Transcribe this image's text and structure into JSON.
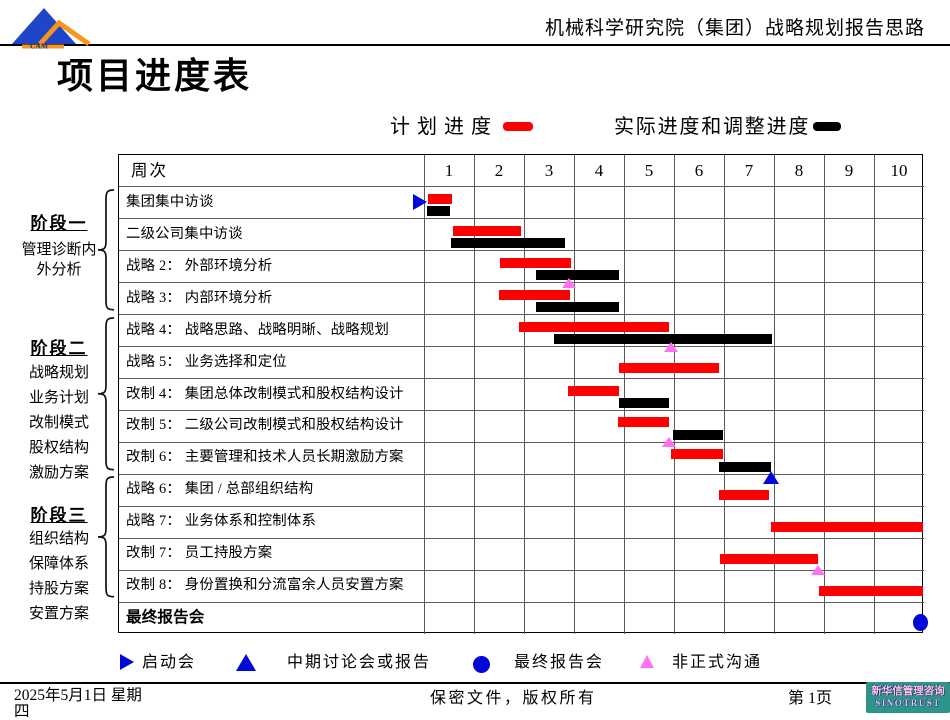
{
  "header": {
    "brand_mark": "CAM",
    "title": "机械科学研究院（集团）战略规划报告思路"
  },
  "page_title": "项目进度表",
  "legend_top": [
    {
      "label": "计划进度",
      "color": "#ff0000"
    },
    {
      "label": "实际进度和调整进度",
      "color": "#000000"
    }
  ],
  "chart_data": {
    "type": "gantt",
    "week_header": "周次",
    "weeks": [
      "1",
      "2",
      "3",
      "4",
      "5",
      "6",
      "7",
      "8",
      "9",
      "10"
    ],
    "rows": [
      {
        "label": "集团集中访谈",
        "planned": [
          0.08,
          0.56
        ],
        "actual": [
          0.06,
          0.52
        ],
        "markers": [
          {
            "type": "start",
            "pos": 0
          }
        ]
      },
      {
        "label": "二级公司集中访谈",
        "planned": [
          0.58,
          1.94
        ],
        "actual": [
          0.54,
          2.82
        ]
      },
      {
        "label": "战略 2： 外部环境分析",
        "planned": [
          1.52,
          2.94
        ],
        "actual": [
          2.24,
          3.9
        ],
        "markers": [
          {
            "type": "informal",
            "pos": 2.9
          }
        ]
      },
      {
        "label": "战略 3： 内部环境分析",
        "planned": [
          1.5,
          2.92
        ],
        "actual": [
          2.24,
          3.9
        ]
      },
      {
        "label": "战略 4： 战略思路、战略明晰、战略规划",
        "planned": [
          1.9,
          4.9
        ],
        "actual": [
          2.6,
          6.96
        ],
        "markers": [
          {
            "type": "informal",
            "pos": 4.94
          }
        ]
      },
      {
        "label": "战略 5： 业务选择和定位",
        "planned": [
          3.9,
          5.9
        ]
      },
      {
        "label": "改制 4： 集团总体改制模式和股权结构设计",
        "planned": [
          2.88,
          3.9
        ],
        "actual": [
          3.9,
          4.9
        ]
      },
      {
        "label": "改制 5： 二级公司改制模式和股权结构设计",
        "planned": [
          3.88,
          4.9
        ],
        "actual": [
          4.98,
          5.98
        ],
        "markers": [
          {
            "type": "informal",
            "pos": 4.9
          }
        ]
      },
      {
        "label": "改制 6： 主要管理和技术人员长期激励方案",
        "planned": [
          4.94,
          5.98
        ],
        "actual": [
          5.9,
          6.94
        ],
        "markers": [
          {
            "type": "milestone",
            "pos": 6.94
          }
        ]
      },
      {
        "label": "战略 6： 集团 / 总部组织结构",
        "planned": [
          5.9,
          6.9
        ]
      },
      {
        "label": "战略 7： 业务体系和控制体系",
        "planned": [
          6.94,
          9.98
        ]
      },
      {
        "label": "改制 7： 员工持股方案",
        "planned": [
          5.92,
          7.88
        ],
        "markers": [
          {
            "type": "informal",
            "pos": 7.88
          }
        ]
      },
      {
        "label": "改制 8： 身份置换和分流富余人员安置方案",
        "planned": [
          7.9,
          9.98
        ]
      },
      {
        "label": "最终报告会",
        "bold": true,
        "markers": [
          {
            "type": "final",
            "pos": 9.92
          }
        ]
      }
    ]
  },
  "stages": [
    {
      "title": "阶段一",
      "lines": [
        "管理诊断内",
        "外分析"
      ],
      "from_row": 1,
      "to_row": 4
    },
    {
      "title": "阶段二",
      "lines": [
        "战略规划",
        "业务计划",
        "改制模式",
        "股权结构",
        "激励方案"
      ],
      "from_row": 5,
      "to_row": 9
    },
    {
      "title": "阶段三",
      "lines": [
        "组织结构",
        "保障体系",
        "持股方案",
        "安置方案"
      ],
      "from_row": 10,
      "to_row": 13
    }
  ],
  "legend_bottom": [
    {
      "icon": "start-triangle",
      "label": "启动会"
    },
    {
      "icon": "mid-triangle",
      "label": "中期讨论会或报告"
    },
    {
      "icon": "final-circle",
      "label": "最终报告会"
    },
    {
      "icon": "informal-triangle",
      "label": "非正式沟通"
    }
  ],
  "footer": {
    "date": "2025年5月1日 星期四",
    "center": "保密文件，版权所有",
    "page": "第 1页",
    "logo_line1": "新华信管理咨询",
    "logo_line2": "SINOTRUST"
  },
  "colors": {
    "planned_red": "#ff0000",
    "actual_black": "#000000",
    "milestone_blue": "#0008d8",
    "informal_pink": "#ff70f4",
    "logo_teal": "#2d948a",
    "logo_blue": "#1f46c8",
    "logo_orange": "#f7941d"
  }
}
